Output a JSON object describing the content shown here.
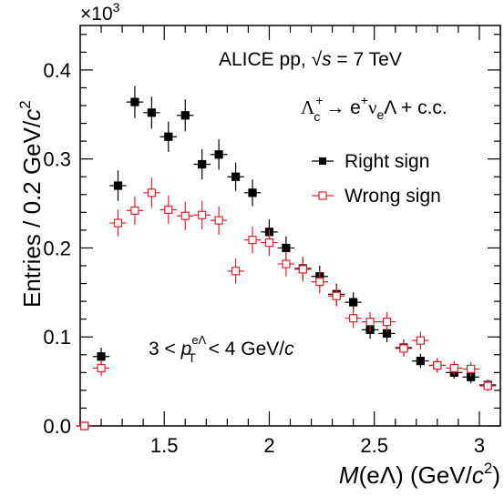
{
  "chart_data": {
    "type": "scatter",
    "xlabel_prefix": "M",
    "xlabel_rest": "(eΛ) (GeV/",
    "xlabel_c": "c",
    "xlabel_sup": "2",
    "xlabel_close": ")",
    "ylabel_main": "Entries / 0.2 GeV/",
    "ylabel_c": "c",
    "ylabel_sup": "2",
    "y_multiplier": "×10",
    "y_multiplier_exp": "3",
    "xlim": [
      1.1,
      3.1
    ],
    "ylim": [
      0,
      450
    ],
    "x_ticks": [
      1.5,
      2,
      2.5,
      3
    ],
    "x_tick_labels": [
      "1.5",
      "2",
      "2.5",
      "3"
    ],
    "y_ticks": [
      0,
      100,
      200,
      300,
      400
    ],
    "y_tick_labels": [
      "0.0",
      "0.1",
      "0.2",
      "0.3",
      "0.4"
    ],
    "legend_position": "right",
    "legend": [
      {
        "label": "Right sign",
        "marker": "filled-square",
        "color": "#000000"
      },
      {
        "label": "Wrong sign",
        "marker": "open-square",
        "color": "#e8202a"
      }
    ],
    "annotations": {
      "experiment": "ALICE  pp, ",
      "sqrt_s": "√s",
      "energy": " = 7 TeV",
      "decay_lambda": "Λ",
      "decay_lambda_sub": "c",
      "decay_lambda_sup": "+",
      "decay_arrow": " → e",
      "decay_e_sup": "+",
      "decay_nu": "ν",
      "decay_nu_sub": "e",
      "decay_rest": "Λ + c.c.",
      "pt_range_prefix": "3 < ",
      "pt_symbol": "p",
      "pt_sub": "T",
      "pt_sup": "eΛ",
      "pt_range_suffix": " < 4 GeV/",
      "pt_c": "c"
    },
    "series": [
      {
        "name": "Right sign",
        "color": "#000000",
        "marker": "filled-square",
        "x": [
          1.12,
          1.2,
          1.28,
          1.36,
          1.44,
          1.52,
          1.6,
          1.68,
          1.76,
          1.84,
          1.92,
          2.0,
          2.08,
          2.16,
          2.24,
          2.32,
          2.4,
          2.48,
          2.56,
          2.64,
          2.72,
          2.8,
          2.88,
          2.96,
          3.04
        ],
        "y": [
          0,
          78,
          270,
          364,
          352,
          325,
          349,
          294,
          305,
          280,
          262,
          218,
          200,
          177,
          168,
          148,
          139,
          108,
          104,
          88,
          73,
          68,
          60,
          55,
          46
        ],
        "yerr": [
          0,
          10,
          17,
          18,
          18,
          17,
          18,
          17,
          17,
          16,
          15,
          14,
          13,
          13,
          12,
          12,
          11,
          10,
          10,
          9,
          8,
          8,
          7,
          7,
          6
        ]
      },
      {
        "name": "Wrong sign",
        "color": "#e8202a",
        "marker": "open-square",
        "x": [
          1.12,
          1.2,
          1.28,
          1.36,
          1.44,
          1.52,
          1.6,
          1.68,
          1.76,
          1.84,
          1.92,
          2.0,
          2.08,
          2.16,
          2.24,
          2.32,
          2.4,
          2.48,
          2.56,
          2.64,
          2.72,
          2.8,
          2.88,
          2.96,
          3.04
        ],
        "y": [
          0,
          65,
          228,
          242,
          262,
          243,
          236,
          237,
          231,
          174,
          209,
          206,
          182,
          176,
          162,
          146,
          121,
          117,
          117,
          87,
          96,
          68,
          65,
          64,
          45
        ],
        "yerr": [
          0,
          9,
          15,
          16,
          17,
          16,
          16,
          16,
          16,
          14,
          15,
          15,
          14,
          14,
          13,
          12,
          11,
          11,
          11,
          9,
          10,
          8,
          8,
          8,
          6
        ]
      }
    ]
  }
}
